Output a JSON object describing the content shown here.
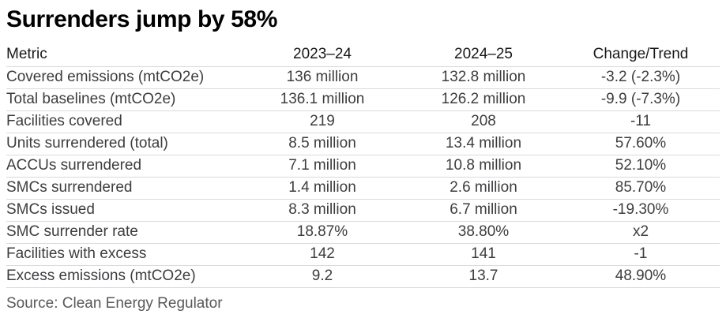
{
  "title": "Surrenders jump by 58%",
  "source": "Source: Clean Energy Regulator",
  "colors": {
    "background": "#ffffff",
    "title_text": "#000000",
    "header_text": "#18181a",
    "body_text": "#3d3d40",
    "source_text": "#59595c",
    "row_divider": "#d9dade"
  },
  "chart_data": {
    "type": "table",
    "title": "Surrenders jump by 58%",
    "source": "Source: Clean Energy Regulator",
    "columns": [
      "Metric",
      "2023–24",
      "2024–25",
      "Change/Trend"
    ],
    "rows": [
      [
        "Covered emissions (mtCO2e)",
        "136 million",
        "132.8 million",
        "-3.2 (-2.3%)"
      ],
      [
        "Total baselines (mtCO2e)",
        "136.1 million",
        "126.2 million",
        "-9.9 (-7.3%)"
      ],
      [
        "Facilities covered",
        "219",
        "208",
        "-11"
      ],
      [
        "Units surrendered (total)",
        "8.5 million",
        "13.4 million",
        "57.60%"
      ],
      [
        "ACCUs surrendered",
        "7.1 million",
        "10.8 million",
        "52.10%"
      ],
      [
        "SMCs surrendered",
        "1.4 million",
        "2.6 million",
        "85.70%"
      ],
      [
        "SMCs issued",
        "8.3 million",
        "6.7 million",
        "-19.30%"
      ],
      [
        "SMC surrender rate",
        "18.87%",
        "38.80%",
        "x2"
      ],
      [
        "Facilities with excess",
        "142",
        "141",
        "-1"
      ],
      [
        "Excess emissions (mtCO2e)",
        "9.2",
        "13.7",
        "48.90%"
      ]
    ],
    "layout": {
      "column_alignment": [
        "left",
        "center",
        "center",
        "center"
      ],
      "grid": "horizontal-dividers-only",
      "legend": "none"
    }
  }
}
